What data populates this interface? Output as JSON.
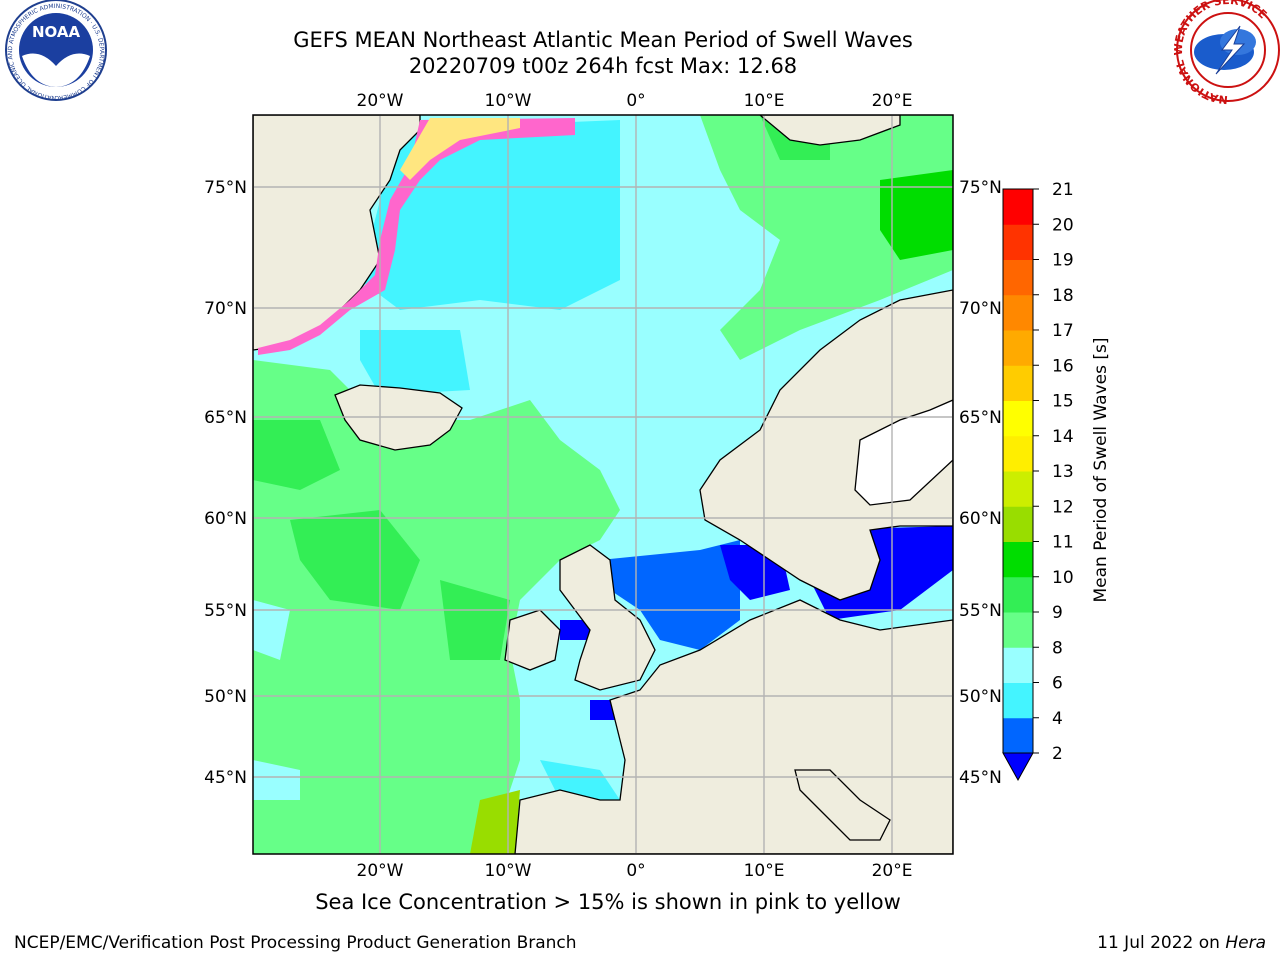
{
  "title_line1": "GEFS MEAN Northeast Atlantic Mean Period of Swell Waves",
  "title_line2": "20220709 t00z 264h fcst   Max: 12.68",
  "map": {
    "lon_labels": [
      "20°W",
      "10°W",
      "0°",
      "10°E",
      "20°E"
    ],
    "lat_labels": [
      "75°N",
      "70°N",
      "65°N",
      "60°N",
      "55°N",
      "50°N",
      "45°N"
    ],
    "colors": {
      "land": "#efedde",
      "sea_ice_pink": "#ff66cc",
      "sea_ice_yellow": "#ffe680",
      "grid": "#b3b3b3"
    }
  },
  "colorbar": {
    "label": "Mean Period of Swell Waves [s]",
    "ticks": [
      "2",
      "4",
      "6",
      "8",
      "9",
      "10",
      "11",
      "12",
      "13",
      "14",
      "15",
      "16",
      "17",
      "18",
      "19",
      "20",
      "21"
    ],
    "colors": [
      "#0066ff",
      "#00ddff",
      "#44f4ff",
      "#99ffff",
      "#66ff88",
      "#33ee55",
      "#00dd00",
      "#99dd00",
      "#ccee00",
      "#ffee00",
      "#ffff00",
      "#ffcc00",
      "#ffaa00",
      "#ff8800",
      "#ff6600",
      "#ff3300",
      "#ff0000"
    ]
  },
  "caption": "Sea Ice Concentration > 15% is shown in pink to yellow",
  "footer_left": "NCEP/EMC/Verification Post Processing Product Generation Branch",
  "footer_right_date": "11 Jul 2022 on",
  "footer_right_host": "Hera",
  "logos": {
    "noaa": {
      "text": "NOAA",
      "ring_text": "NATIONAL OCEANIC AND ATMOSPHERIC ADMINISTRATION · U.S. DEPARTMENT OF COMMERCE"
    },
    "nws": {
      "ring_text": "NATIONAL WEATHER SERVICE"
    }
  }
}
